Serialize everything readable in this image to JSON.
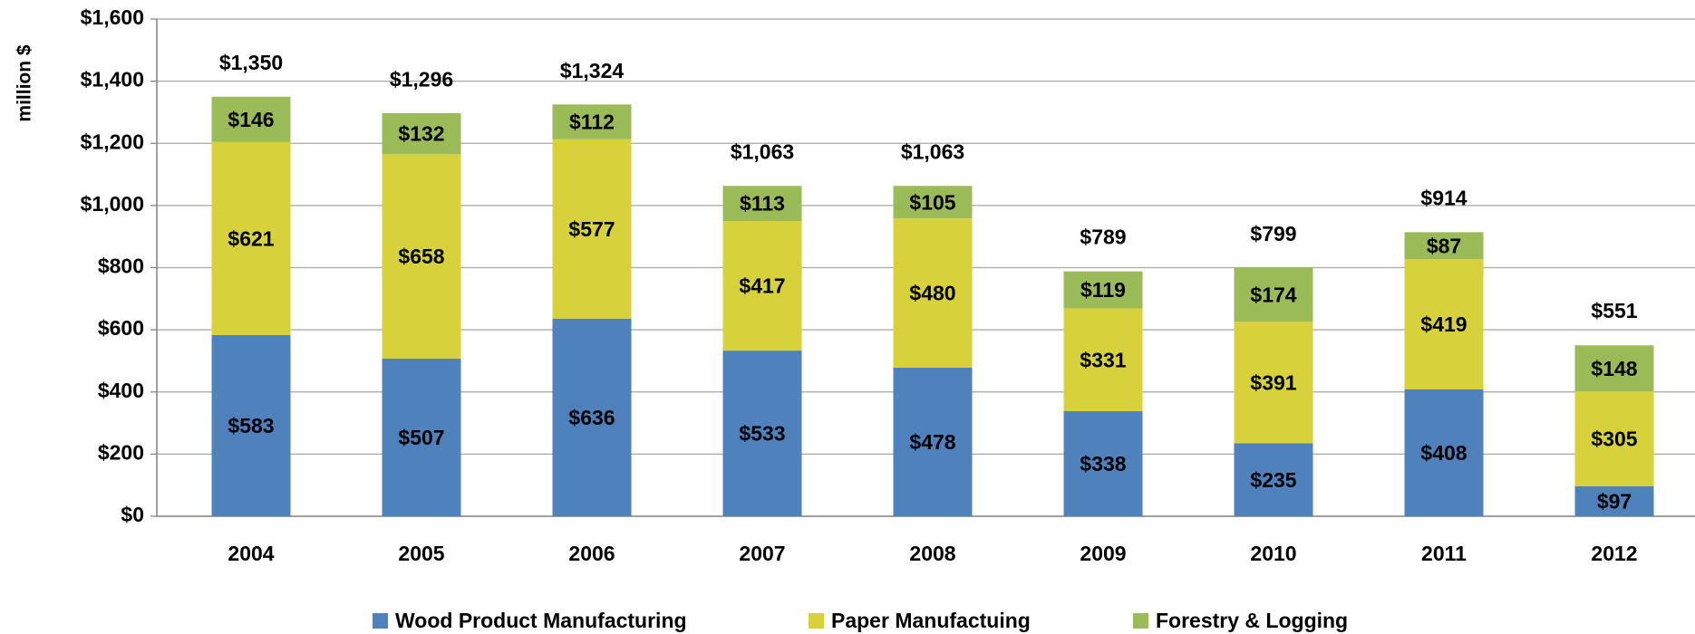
{
  "chart_data": {
    "type": "stacked_bar",
    "y_label": "million $",
    "categories": [
      "2004",
      "2005",
      "2006",
      "2007",
      "2008",
      "2009",
      "2010",
      "2011",
      "2012"
    ],
    "series": [
      {
        "name": "Wood Product Manufacturing",
        "color": "#4f81bd",
        "values": [
          583,
          507,
          636,
          533,
          478,
          338,
          235,
          408,
          97
        ],
        "value_labels": [
          "$583",
          "$507",
          "$636",
          "$533",
          "$478",
          "$338",
          "$235",
          "$408",
          "$97"
        ]
      },
      {
        "name": "Paper Manufactuing",
        "color": "#d7d23c",
        "values": [
          621,
          658,
          577,
          417,
          480,
          331,
          391,
          419,
          305
        ],
        "value_labels": [
          "$621",
          "$658",
          "$577",
          "$417",
          "$480",
          "$331",
          "$391",
          "$419",
          "$305"
        ]
      },
      {
        "name": "Forestry & Logging",
        "color": "#9bbb59",
        "values": [
          146,
          132,
          112,
          113,
          105,
          119,
          174,
          87,
          148
        ],
        "value_labels": [
          "$146",
          "$132",
          "$112",
          "$113",
          "$105",
          "$119",
          "$174",
          "$87",
          "$148"
        ]
      }
    ],
    "totals": {
      "color": "#c00000",
      "values": [
        1350,
        1296,
        1324,
        1063,
        1063,
        789,
        799,
        914,
        551
      ],
      "value_labels": [
        "$1,350",
        "$1,296",
        "$1,324",
        "$1,063",
        "$1,063",
        "$789",
        "$799",
        "$914",
        "$551"
      ]
    },
    "ylim": [
      0,
      1600
    ],
    "yticks": [
      {
        "value": 0,
        "label": "$0"
      },
      {
        "value": 200,
        "label": "$200"
      },
      {
        "value": 400,
        "label": "$400"
      },
      {
        "value": 600,
        "label": "$600"
      },
      {
        "value": 800,
        "label": "$800"
      },
      {
        "value": 1000,
        "label": "$1,000"
      },
      {
        "value": 1200,
        "label": "$1,200"
      },
      {
        "value": 1400,
        "label": "$1,400"
      },
      {
        "value": 1600,
        "label": "$1,600"
      }
    ],
    "grid": true,
    "legend": "bottom"
  }
}
